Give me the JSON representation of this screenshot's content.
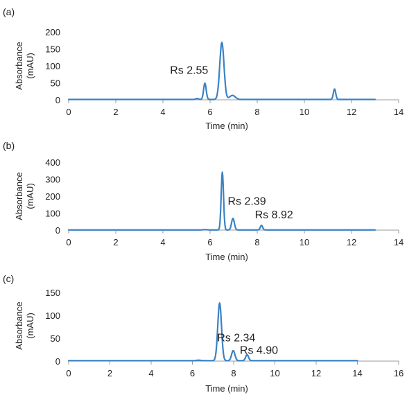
{
  "chart_data": [
    {
      "panel": "(a)",
      "type": "line",
      "xlabel": "Time (min)",
      "ylabel": "Absorbance\n(mAU)",
      "xlim": [
        0,
        14
      ],
      "ylim": [
        0,
        200
      ],
      "xticks": [
        0,
        2,
        4,
        6,
        8,
        10,
        12,
        14
      ],
      "yticks": [
        0,
        50,
        100,
        150,
        200
      ],
      "grid": false,
      "series": [
        {
          "name": "chromatogram",
          "x_end": 13.0,
          "peaks": [
            {
              "t": 5.45,
              "h": 3,
              "w": 0.06
            },
            {
              "t": 5.78,
              "h": 48,
              "w": 0.055
            },
            {
              "t": 6.5,
              "h": 168,
              "w": 0.09
            },
            {
              "t": 6.95,
              "h": 12,
              "w": 0.12
            },
            {
              "t": 11.28,
              "h": 31,
              "w": 0.05
            }
          ]
        }
      ],
      "annotations": [
        {
          "text": "Rs 2.55",
          "x": 4.3,
          "y": 77
        }
      ]
    },
    {
      "panel": "(b)",
      "type": "line",
      "xlabel": "Time (min)",
      "ylabel": "Absorbance\n(mAU)",
      "xlim": [
        0,
        14
      ],
      "ylim": [
        0,
        400
      ],
      "xticks": [
        0,
        2,
        4,
        6,
        8,
        10,
        12,
        14
      ],
      "yticks": [
        0,
        100,
        200,
        300,
        400
      ],
      "grid": false,
      "series": [
        {
          "name": "chromatogram",
          "x_end": 13.0,
          "peaks": [
            {
              "t": 5.8,
              "h": 2,
              "w": 0.08
            },
            {
              "t": 6.52,
              "h": 340,
              "w": 0.05
            },
            {
              "t": 6.97,
              "h": 68,
              "w": 0.06
            },
            {
              "t": 8.18,
              "h": 27,
              "w": 0.05
            }
          ]
        }
      ],
      "annotations": [
        {
          "text": "Rs 2.39",
          "x": 6.75,
          "y": 150
        },
        {
          "text": "Rs 8.92",
          "x": 7.9,
          "y": 70
        }
      ]
    },
    {
      "panel": "(c)",
      "type": "line",
      "xlabel": "Time (min)",
      "ylabel": "Absorbance\n(mAU)",
      "xlim": [
        0,
        16
      ],
      "ylim": [
        0,
        150
      ],
      "xticks": [
        0,
        2,
        4,
        6,
        8,
        10,
        12,
        14,
        16
      ],
      "yticks": [
        0,
        50,
        100,
        150
      ],
      "grid": false,
      "series": [
        {
          "name": "chromatogram",
          "x_end": 14.0,
          "peaks": [
            {
              "t": 6.3,
              "h": 1,
              "w": 0.1
            },
            {
              "t": 7.32,
              "h": 126,
              "w": 0.09
            },
            {
              "t": 7.98,
              "h": 22,
              "w": 0.08
            },
            {
              "t": 8.65,
              "h": 13,
              "w": 0.07
            }
          ]
        }
      ],
      "annotations": [
        {
          "text": "Rs 2.34",
          "x": 7.2,
          "y": 43
        },
        {
          "text": "Rs 4.90",
          "x": 8.3,
          "y": 16
        }
      ]
    }
  ]
}
